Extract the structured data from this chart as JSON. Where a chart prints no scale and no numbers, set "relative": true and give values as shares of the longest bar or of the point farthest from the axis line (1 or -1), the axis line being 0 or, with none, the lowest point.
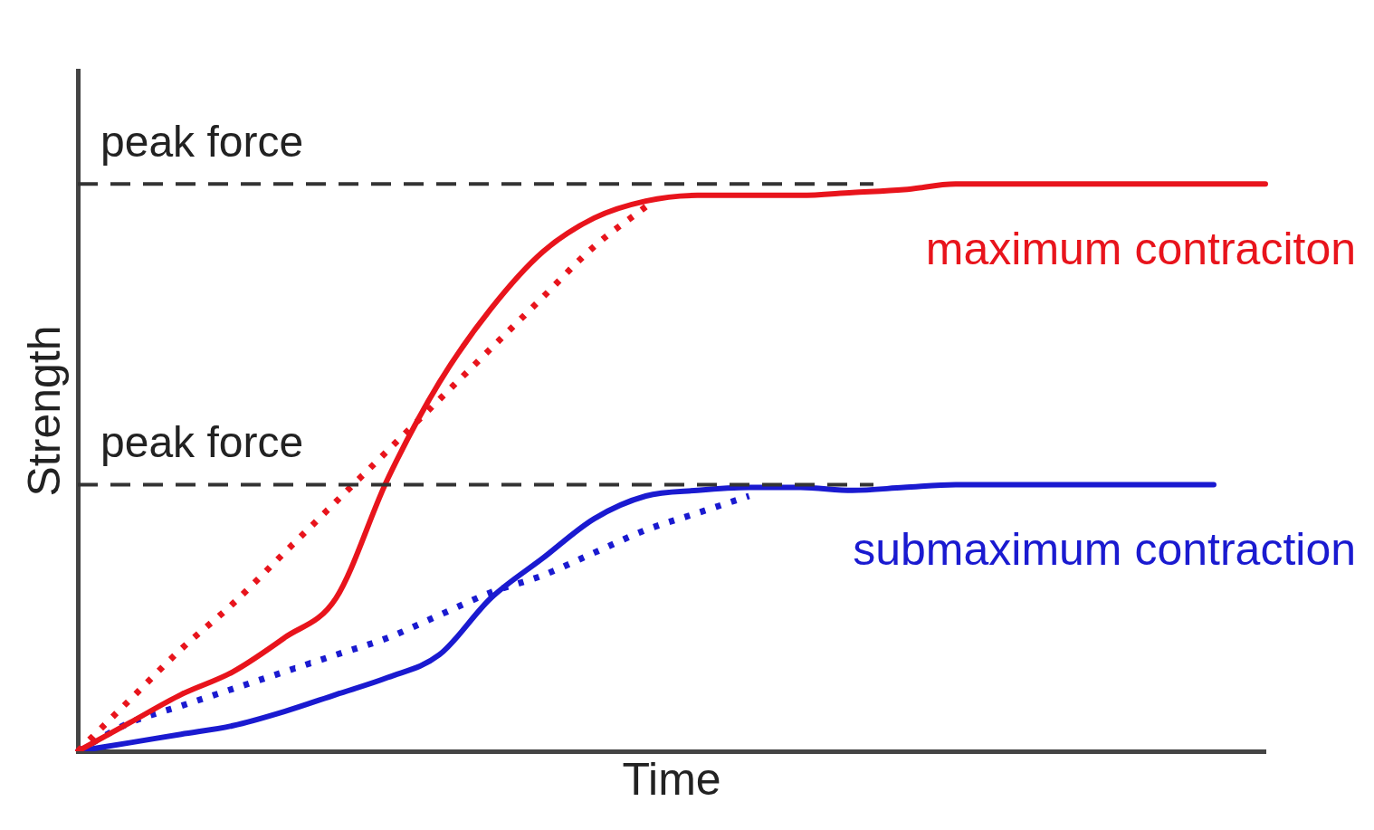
{
  "chart_data": {
    "type": "line",
    "relative": true,
    "xlabel": "Time",
    "ylabel": "Strength",
    "categories": [
      null,
      null,
      null,
      null,
      null,
      null,
      null,
      null,
      null,
      null,
      null,
      null,
      null,
      null,
      null,
      null,
      null,
      null,
      null,
      null,
      null,
      null,
      null,
      null
    ],
    "series": [
      {
        "name": "maximum contraciton",
        "color": "#e8141c",
        "line_style": "solid",
        "values": [
          0,
          0.05,
          0.1,
          0.14,
          0.2,
          0.27,
          0.48,
          0.65,
          0.78,
          0.88,
          0.94,
          0.97,
          0.98,
          0.98,
          0.98,
          0.985,
          0.99,
          1,
          1,
          1,
          1,
          1,
          1,
          1
        ]
      },
      {
        "color": "#e8141c",
        "line_style": "dotted",
        "values": [
          0,
          0.09,
          0.18,
          0.26,
          0.35,
          0.44,
          0.53,
          0.62,
          0.71,
          0.8,
          0.89,
          0.96,
          null,
          null,
          null,
          null,
          null,
          null,
          null,
          null,
          null,
          null,
          null,
          null
        ]
      },
      {
        "name": "submaximum contraction",
        "color": "#1a1ad0",
        "line_style": "solid",
        "values": [
          0,
          0.015,
          0.03,
          0.045,
          0.07,
          0.1,
          0.13,
          0.17,
          0.27,
          0.34,
          0.41,
          0.45,
          0.46,
          0.465,
          0.465,
          0.46,
          0.465,
          0.47,
          0.47,
          0.47,
          0.47,
          0.47,
          0.47,
          null
        ]
      },
      {
        "color": "#1a1ad0",
        "line_style": "dotted",
        "values": [
          0,
          0.05,
          0.08,
          0.11,
          0.14,
          0.17,
          0.2,
          0.24,
          0.28,
          0.31,
          0.35,
          0.39,
          0.42,
          0.45,
          null,
          null,
          null,
          null,
          null,
          null,
          null,
          null,
          null,
          null
        ]
      }
    ],
    "ref_lines": [
      {
        "axis": "y",
        "value": 1,
        "label": "peak force",
        "color": "#333333",
        "line_style": "dashed"
      },
      {
        "axis": "y",
        "value": 0.47,
        "label": "peak force",
        "color": "#333333",
        "line_style": "dashed"
      }
    ],
    "grid": false,
    "legend": false,
    "marker": "none"
  }
}
